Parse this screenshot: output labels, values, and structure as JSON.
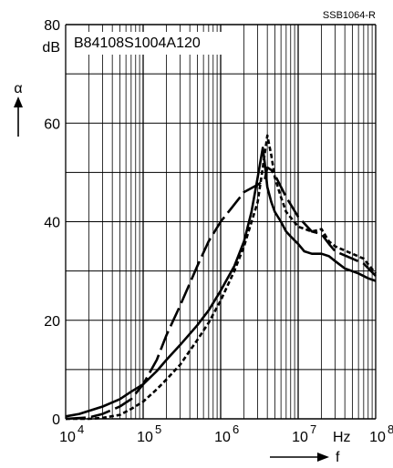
{
  "chart_data": {
    "type": "line",
    "figure_id": "SSB1064-R",
    "part_number": "B84108S1004A120",
    "ylabel": "α",
    "yunit": "dB",
    "xlabel": "f",
    "xunit": "Hz",
    "xscale": "log",
    "xlim": [
      10000,
      100000000
    ],
    "ylim": [
      0,
      80
    ],
    "grid": true,
    "x_ticks": [
      {
        "base": "10",
        "exp": "4",
        "value": 10000
      },
      {
        "base": "10",
        "exp": "5",
        "value": 100000
      },
      {
        "base": "10",
        "exp": "6",
        "value": 1000000
      },
      {
        "base": "10",
        "exp": "7",
        "value": 10000000
      },
      {
        "base": "10",
        "exp": "8",
        "value": 100000000
      }
    ],
    "y_ticks": [
      "0",
      "20",
      "40",
      "60",
      "80"
    ],
    "y_tick_values": [
      0,
      20,
      40,
      60,
      80
    ],
    "series": [
      {
        "style": "solid",
        "x": [
          10000,
          15000,
          20000,
          30000,
          50000,
          70000,
          100000,
          150000,
          200000,
          300000,
          500000,
          700000,
          1000000,
          1500000,
          2000000,
          2500000,
          3000000,
          3500000,
          3700000,
          4000000,
          4500000,
          5000000,
          6000000,
          7000000,
          8000000,
          10000000,
          12000000,
          15000000,
          20000000,
          25000000,
          30000000,
          40000000,
          60000000,
          80000000,
          100000000
        ],
        "y": [
          0.5,
          1.0,
          1.6,
          2.5,
          4.0,
          5.5,
          7.0,
          9.7,
          12.0,
          15.0,
          19.0,
          22.0,
          26.0,
          31.0,
          36.0,
          42.0,
          49.0,
          55.0,
          52.0,
          47.0,
          44.0,
          42.0,
          40.0,
          38.0,
          37.0,
          35.5,
          34.0,
          33.5,
          33.5,
          33.0,
          32.0,
          30.5,
          29.5,
          28.5,
          28.0
        ]
      },
      {
        "style": "dashed",
        "x": [
          10000,
          20000,
          30000,
          50000,
          70000,
          100000,
          150000,
          200000,
          300000,
          500000,
          700000,
          1000000,
          1500000,
          2000000,
          3000000,
          3700000,
          4000000,
          4500000,
          5000000,
          7000000,
          10000000,
          15000000,
          20000000,
          25000000,
          30000000,
          50000000,
          70000000,
          100000000
        ],
        "y": [
          0.0,
          0.3,
          1.0,
          2.5,
          4.0,
          7.0,
          12.0,
          17.0,
          23.0,
          31.0,
          36.0,
          40.0,
          43.5,
          46.0,
          47.5,
          48.5,
          51.0,
          50.5,
          49.5,
          45.0,
          41.0,
          38.0,
          37.5,
          35.5,
          34.0,
          32.5,
          31.5,
          29.0
        ]
      },
      {
        "style": "short-dashed",
        "x": [
          10000,
          20000,
          30000,
          50000,
          70000,
          100000,
          150000,
          200000,
          300000,
          500000,
          700000,
          1000000,
          1500000,
          2000000,
          3000000,
          3500000,
          4000000,
          4500000,
          5000000,
          6000000,
          7000000,
          10000000,
          15000000,
          20000000,
          25000000,
          30000000,
          50000000,
          70000000,
          100000000
        ],
        "y": [
          0.0,
          0.0,
          0.2,
          0.8,
          2.0,
          3.5,
          6.0,
          8.0,
          11.0,
          16.0,
          19.5,
          24.0,
          30.0,
          35.0,
          44.0,
          51.0,
          57.5,
          53.5,
          49.0,
          45.0,
          42.0,
          39.0,
          38.0,
          38.5,
          36.0,
          35.0,
          33.5,
          32.5,
          29.5
        ]
      }
    ]
  }
}
